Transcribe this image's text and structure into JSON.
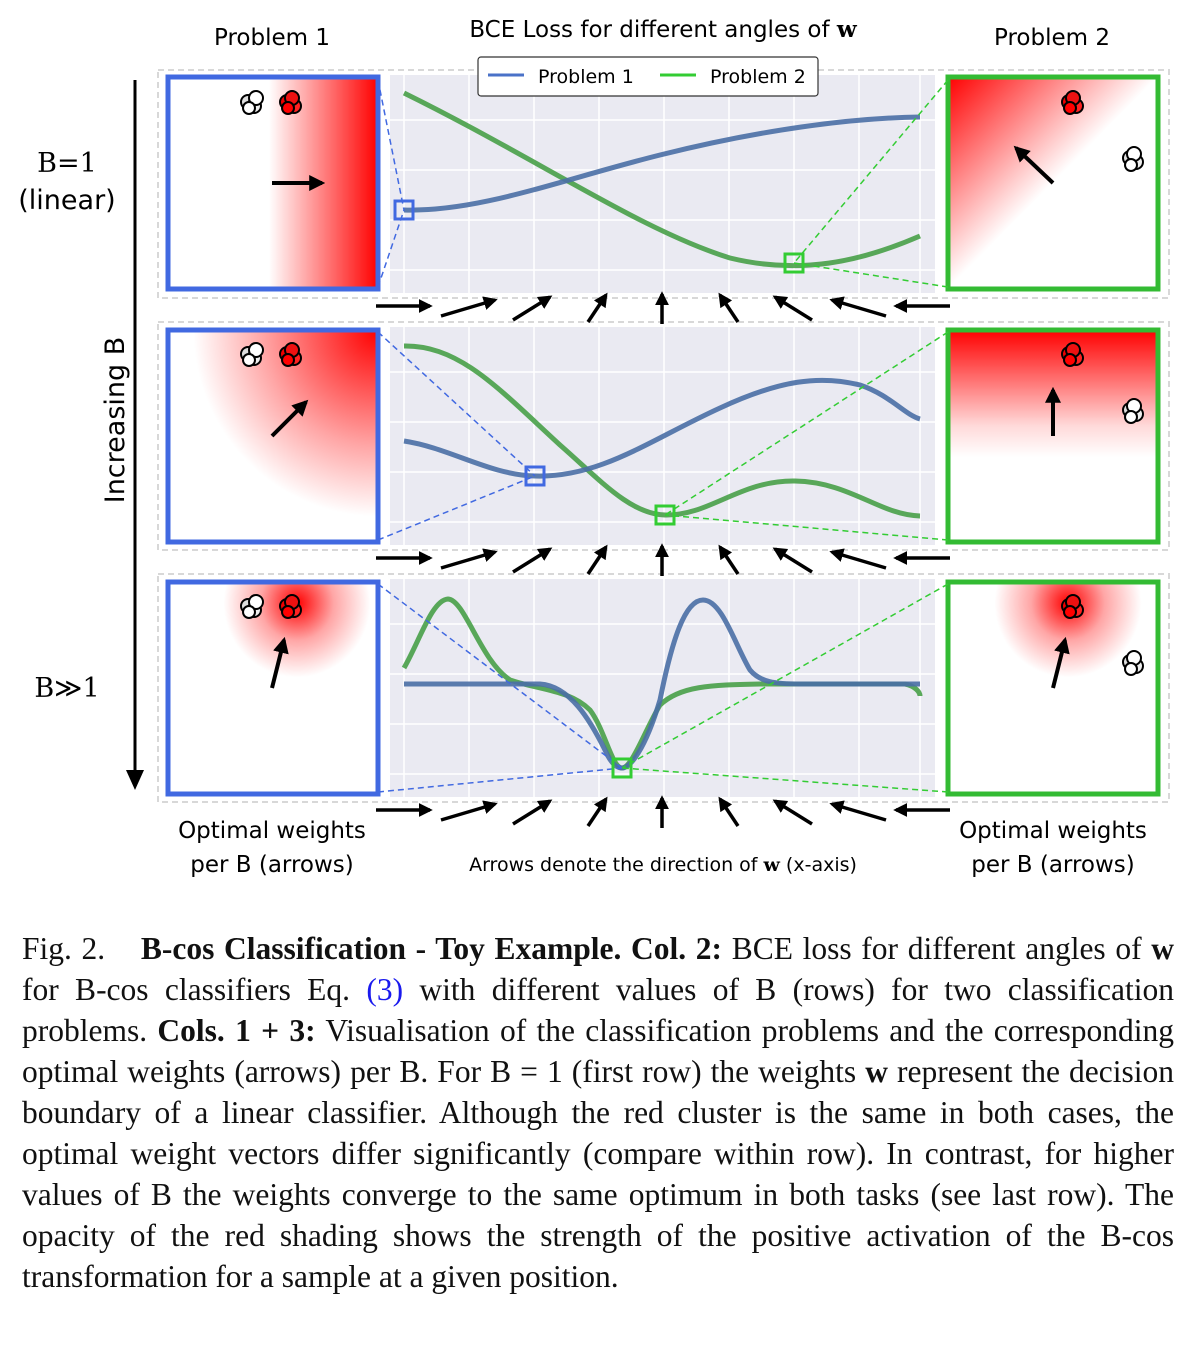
{
  "figure": {
    "col1_title": "Problem 1",
    "col2_title_prefix": "BCE Loss for different angles of ",
    "col2_title_var": "w",
    "col3_title": "Problem 2",
    "row_labels": {
      "b1_line1": "B=1",
      "b1_line2": "(linear)",
      "increasing": "Increasing B",
      "bgg": "B≫1"
    },
    "legend": [
      {
        "label": "Problem 1",
        "color": "#4a72c8"
      },
      {
        "label": "Problem 2",
        "color": "#33cc33"
      }
    ],
    "bottom_left_line1": "Optimal weights",
    "bottom_left_line2": "per B (arrows)",
    "bottom_right_line1": "Optimal weights",
    "bottom_right_line2": "per B (arrows)",
    "bottom_center_prefix": "Arrows denote the direction of ",
    "bottom_center_var": "w",
    "bottom_center_suffix": " (x-axis)",
    "colors": {
      "problem1_curve": "#4a6fa5",
      "problem2_curve": "#3e9b3e",
      "problem1_frame": "#4169e1",
      "problem2_frame": "#33cc33",
      "activation": "#ff0000",
      "plot_bg": "#eaeaf2"
    }
  },
  "caption": {
    "fig_label": "Fig. 2.",
    "title": "B-cos Classification - Toy Example.",
    "col2_label": "Col. 2:",
    "text1": "BCE loss for different angles of",
    "w1": "w",
    "text2": "for B-cos classifiers Eq.",
    "eq_ref": "(3)",
    "text3": "with different values of B (rows) for two classification problems.",
    "cols_label": "Cols. 1 + 3:",
    "text4": "Visualisation of the classification problems and the corresponding optimal weights (arrows) per B. For B = 1 (first row) the weights",
    "w2": "w",
    "text5": "represent the decision boundary of a linear classifier. Although the red cluster is the same in both cases, the optimal weight vectors differ significantly (compare within row). In contrast, for higher values of B the weights converge to the same optimum in both tasks (see last row). The opacity of the red shading shows the strength of the positive activation of the B-cos transformation for a sample at a given position."
  }
}
